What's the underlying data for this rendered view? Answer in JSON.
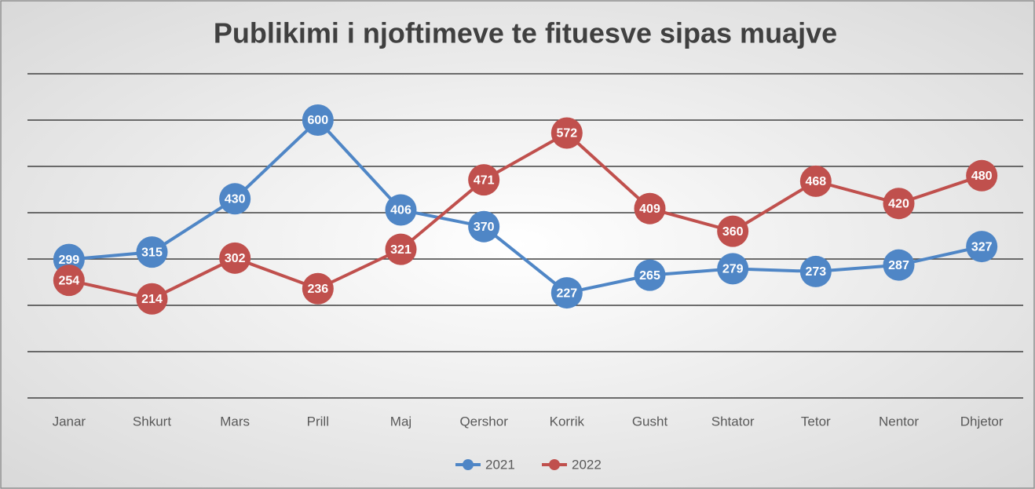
{
  "chart_data": {
    "type": "line",
    "title": "Publikimi i njoftimeve te fituesve sipas muajve",
    "categories": [
      "Janar",
      "Shkurt",
      "Mars",
      "Prill",
      "Maj",
      "Qershor",
      "Korrik",
      "Gusht",
      "Shtator",
      "Tetor",
      "Nentor",
      "Dhjetor"
    ],
    "series": [
      {
        "name": "2021",
        "color": "#4f86c6",
        "values": [
          299,
          315,
          430,
          600,
          406,
          370,
          227,
          265,
          279,
          273,
          287,
          327
        ]
      },
      {
        "name": "2022",
        "color": "#c0504d",
        "values": [
          254,
          214,
          302,
          236,
          321,
          471,
          572,
          409,
          360,
          468,
          420,
          480
        ]
      }
    ],
    "ylim": [
      0,
      700
    ],
    "yticks": [
      0,
      100,
      200,
      300,
      400,
      500,
      600,
      700
    ],
    "grid": true,
    "legend": "bottom"
  }
}
